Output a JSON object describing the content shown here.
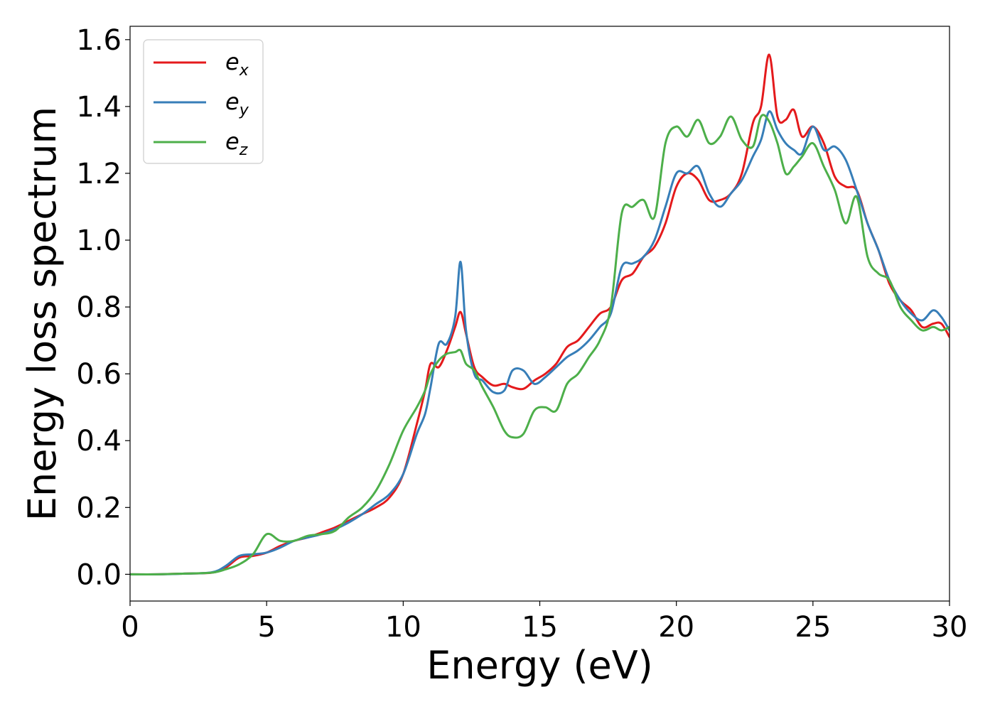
{
  "chart_data": {
    "type": "line",
    "title": "",
    "xlabel": "Energy (eV)",
    "ylabel": "Energy loss spectrum",
    "xlim": [
      0,
      30
    ],
    "ylim": [
      -0.08,
      1.64
    ],
    "xticks": [
      "0",
      "5",
      "10",
      "15",
      "20",
      "25",
      "30"
    ],
    "yticks": [
      "0.0",
      "0.2",
      "0.4",
      "0.6",
      "0.8",
      "1.0",
      "1.2",
      "1.4",
      "1.6"
    ],
    "grid": false,
    "legend_position": "top-left",
    "series": [
      {
        "name": "e_x",
        "label_main": "e",
        "label_sub": "x",
        "color": "#e41a1c",
        "x": [
          0,
          1,
          2,
          3,
          3.5,
          4,
          4.5,
          5,
          5.5,
          6,
          6.5,
          7,
          7.5,
          8,
          8.5,
          9,
          9.5,
          10,
          10.5,
          10.8,
          11,
          11.3,
          11.6,
          11.9,
          12.1,
          12.3,
          12.6,
          12.9,
          13.3,
          13.7,
          14.0,
          14.4,
          14.8,
          15.2,
          15.6,
          16.0,
          16.4,
          16.8,
          17.2,
          17.6,
          18.0,
          18.4,
          18.8,
          19.2,
          19.6,
          20.0,
          20.4,
          20.8,
          21.2,
          21.6,
          22.0,
          22.4,
          22.8,
          23.1,
          23.4,
          23.7,
          24.0,
          24.3,
          24.6,
          25.0,
          25.4,
          25.8,
          26.2,
          26.6,
          27.0,
          27.4,
          27.8,
          28.2,
          28.6,
          29.0,
          29.4,
          29.7,
          30.0
        ],
        "y": [
          0,
          0,
          0.002,
          0.005,
          0.02,
          0.05,
          0.055,
          0.065,
          0.085,
          0.1,
          0.11,
          0.125,
          0.14,
          0.16,
          0.18,
          0.2,
          0.23,
          0.3,
          0.45,
          0.55,
          0.63,
          0.62,
          0.67,
          0.74,
          0.785,
          0.72,
          0.62,
          0.59,
          0.565,
          0.57,
          0.56,
          0.555,
          0.58,
          0.6,
          0.63,
          0.68,
          0.7,
          0.74,
          0.78,
          0.8,
          0.88,
          0.9,
          0.95,
          0.98,
          1.05,
          1.16,
          1.2,
          1.18,
          1.12,
          1.12,
          1.14,
          1.2,
          1.35,
          1.4,
          1.555,
          1.37,
          1.36,
          1.39,
          1.31,
          1.34,
          1.29,
          1.19,
          1.16,
          1.15,
          1.05,
          0.97,
          0.87,
          0.82,
          0.79,
          0.74,
          0.75,
          0.75,
          0.71
        ]
      },
      {
        "name": "e_y",
        "label_main": "e",
        "label_sub": "y",
        "color": "#377eb8",
        "x": [
          0,
          1,
          2,
          3,
          3.5,
          4,
          4.5,
          5,
          5.5,
          6,
          6.5,
          7,
          7.5,
          8,
          8.5,
          9,
          9.5,
          10,
          10.5,
          10.8,
          11,
          11.3,
          11.6,
          11.9,
          12.1,
          12.3,
          12.6,
          12.9,
          13.3,
          13.7,
          14.0,
          14.4,
          14.8,
          15.2,
          15.6,
          16.0,
          16.4,
          16.8,
          17.2,
          17.6,
          18.0,
          18.4,
          18.8,
          19.2,
          19.6,
          20.0,
          20.4,
          20.8,
          21.2,
          21.6,
          22.0,
          22.4,
          22.8,
          23.1,
          23.4,
          23.7,
          24.0,
          24.3,
          24.6,
          25.0,
          25.4,
          25.8,
          26.2,
          26.6,
          27.0,
          27.4,
          27.8,
          28.2,
          28.6,
          29.0,
          29.4,
          29.7,
          30.0
        ],
        "y": [
          0,
          0,
          0.002,
          0.006,
          0.025,
          0.055,
          0.06,
          0.065,
          0.08,
          0.1,
          0.11,
          0.12,
          0.135,
          0.155,
          0.18,
          0.21,
          0.24,
          0.3,
          0.42,
          0.48,
          0.56,
          0.69,
          0.69,
          0.77,
          0.935,
          0.73,
          0.6,
          0.58,
          0.545,
          0.55,
          0.61,
          0.61,
          0.57,
          0.59,
          0.62,
          0.65,
          0.67,
          0.7,
          0.74,
          0.78,
          0.92,
          0.93,
          0.95,
          1.0,
          1.1,
          1.2,
          1.2,
          1.22,
          1.14,
          1.1,
          1.14,
          1.18,
          1.25,
          1.3,
          1.385,
          1.33,
          1.29,
          1.27,
          1.26,
          1.34,
          1.27,
          1.28,
          1.24,
          1.15,
          1.05,
          0.97,
          0.88,
          0.82,
          0.78,
          0.76,
          0.79,
          0.77,
          0.73
        ]
      },
      {
        "name": "e_z",
        "label_main": "e",
        "label_sub": "z",
        "color": "#4daf4a",
        "x": [
          0,
          1,
          2,
          3,
          3.5,
          4,
          4.5,
          5,
          5.5,
          6,
          6.5,
          7,
          7.5,
          8,
          8.5,
          9,
          9.5,
          10,
          10.5,
          10.8,
          11,
          11.3,
          11.6,
          11.9,
          12.1,
          12.3,
          12.6,
          12.9,
          13.3,
          13.7,
          14.0,
          14.4,
          14.8,
          15.2,
          15.6,
          16.0,
          16.4,
          16.8,
          17.2,
          17.6,
          18.0,
          18.4,
          18.8,
          19.2,
          19.6,
          20.0,
          20.4,
          20.8,
          21.2,
          21.6,
          22.0,
          22.4,
          22.8,
          23.1,
          23.4,
          23.7,
          24.0,
          24.3,
          24.6,
          25.0,
          25.4,
          25.8,
          26.2,
          26.6,
          27.0,
          27.4,
          27.8,
          28.2,
          28.6,
          29.0,
          29.4,
          29.7,
          30.0
        ],
        "y": [
          0,
          0,
          0.002,
          0.005,
          0.015,
          0.03,
          0.06,
          0.12,
          0.1,
          0.1,
          0.115,
          0.12,
          0.13,
          0.17,
          0.2,
          0.25,
          0.33,
          0.43,
          0.5,
          0.55,
          0.6,
          0.64,
          0.66,
          0.665,
          0.67,
          0.63,
          0.61,
          0.56,
          0.5,
          0.43,
          0.41,
          0.42,
          0.49,
          0.5,
          0.49,
          0.57,
          0.6,
          0.65,
          0.7,
          0.8,
          1.08,
          1.1,
          1.12,
          1.07,
          1.29,
          1.34,
          1.31,
          1.36,
          1.29,
          1.31,
          1.37,
          1.3,
          1.28,
          1.37,
          1.355,
          1.29,
          1.2,
          1.22,
          1.25,
          1.29,
          1.22,
          1.15,
          1.05,
          1.13,
          0.95,
          0.9,
          0.88,
          0.8,
          0.76,
          0.73,
          0.74,
          0.73,
          0.74
        ]
      }
    ]
  }
}
